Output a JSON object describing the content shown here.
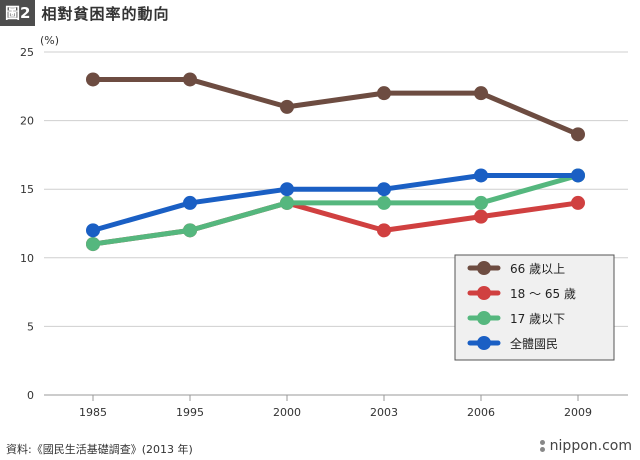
{
  "header": {
    "tag": "圖2",
    "title": "相對貧困率的動向"
  },
  "source": "資料:《國民生活基礎調查》(2013 年)",
  "brand": "nippon.com",
  "chart_data": {
    "type": "line",
    "title": "相對貧困率的動向",
    "ylabel": "(%)",
    "xlabel": "",
    "ylim": [
      0,
      25
    ],
    "yticks": [
      0,
      5,
      10,
      15,
      20,
      25
    ],
    "grid": true,
    "legend_position": "bottom-right",
    "categories": [
      "1985",
      "1995",
      "2000",
      "2003",
      "2006",
      "2009"
    ],
    "series": [
      {
        "name": "66 歲以上",
        "color": "#6d4c41",
        "values": [
          23,
          23,
          21,
          22,
          22,
          19
        ]
      },
      {
        "name": "18 ～ 65 歲",
        "color": "#d04040",
        "values": [
          11,
          12,
          14,
          12,
          13,
          14
        ]
      },
      {
        "name": "17 歲以下",
        "color": "#55b77e",
        "values": [
          11,
          12,
          14,
          14,
          14,
          16
        ]
      },
      {
        "name": "全體國民",
        "color": "#1a5fc4",
        "values": [
          12,
          14,
          15,
          15,
          16,
          16
        ]
      }
    ]
  }
}
